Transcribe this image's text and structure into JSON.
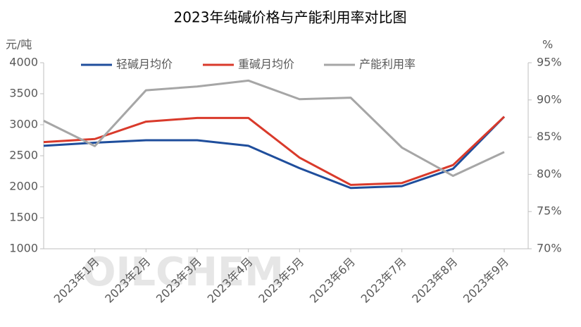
{
  "chart_data": {
    "type": "line",
    "title": "2023年纯碱价格与产能利用率对比图",
    "y_label": "元/吨",
    "y2_label": "%",
    "watermark": "OILCHEM",
    "categories": [
      null,
      "2023年1月",
      "2023年2月",
      "2023年3月",
      "2023年4月",
      "2023年5月",
      "2023年6月",
      "2023年7月",
      "2023年8月",
      "2023年9月"
    ],
    "series": [
      {
        "name": "轻碱月均价",
        "color": "#1f4e9c",
        "values": [
          2660,
          2710,
          2750,
          2750,
          2660,
          2300,
          1980,
          2010,
          2290,
          3130
        ]
      },
      {
        "name": "重碱月均价",
        "color": "#d93a2b",
        "values": [
          2720,
          2770,
          3050,
          3110,
          3110,
          2470,
          2030,
          2060,
          2350,
          3130
        ]
      },
      {
        "name": "产能利用率",
        "color": "#a6a6a6",
        "axis": "y2",
        "values": [
          87.2,
          83.8,
          91.3,
          91.8,
          92.6,
          90.1,
          90.3,
          83.6,
          79.8,
          83.0
        ]
      }
    ],
    "ylim": [
      1000,
      4000
    ],
    "yticks": [
      1000,
      1500,
      2000,
      2500,
      3000,
      3500,
      4000
    ],
    "y2lim": [
      70,
      95
    ],
    "y2ticks": [
      {
        "value": 70,
        "label": "70%"
      },
      {
        "value": 75,
        "label": "75%"
      },
      {
        "value": 80,
        "label": "80%"
      },
      {
        "value": 85,
        "label": "85%"
      },
      {
        "value": 90,
        "label": "90%"
      },
      {
        "value": 95,
        "label": "95%"
      }
    ],
    "legend": "top"
  }
}
